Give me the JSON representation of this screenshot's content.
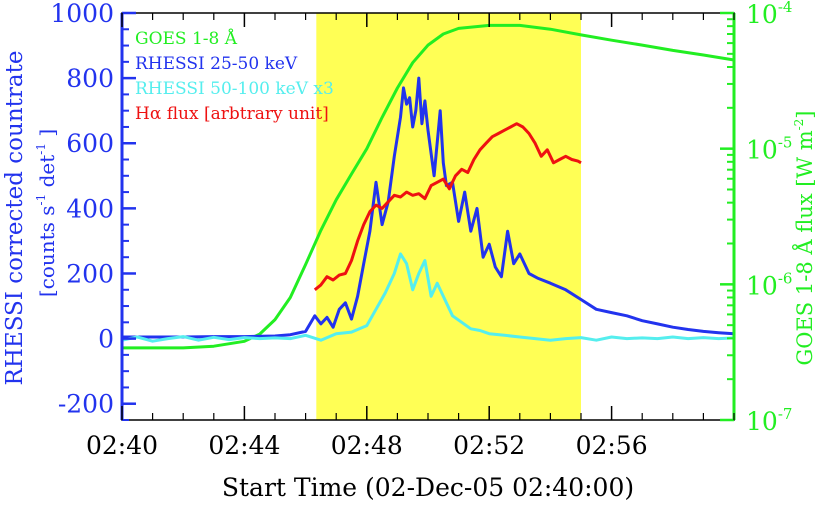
{
  "chart_data": {
    "type": "line",
    "x_axis": {
      "label": "Start Time (02-Dec-05 02:40:00)",
      "range_min": [
        0,
        20
      ],
      "ticks": [
        0,
        4,
        8,
        12,
        16
      ],
      "tick_labels": [
        "02:40",
        "02:44",
        "02:48",
        "02:52",
        "02:56"
      ],
      "minor_step_min": 1
    },
    "y_left": {
      "label_line1": "RHESSI corrected countrate",
      "label_line2_pre": "[counts s",
      "label_line2_sup1": "-1",
      "label_line2_mid": " det",
      "label_line2_sup2": "-1",
      "label_line2_post": " ]",
      "range": [
        -250,
        1000
      ],
      "ticks": [
        -200,
        0,
        200,
        400,
        600,
        800,
        1000
      ],
      "tick_labels": [
        "-200",
        "0",
        "200",
        "400",
        "600",
        "800",
        "1000"
      ],
      "color": "#2233ee"
    },
    "y_right": {
      "label_pre": "GOES 1-8 Å flux [W m",
      "label_sup": "-2",
      "label_post": "]",
      "scale": "log",
      "range": [
        1e-07,
        0.0001
      ],
      "ticks": [
        1e-07,
        1e-06,
        1e-05,
        0.0001
      ],
      "tick_bases": [
        "10",
        "10",
        "10",
        "10"
      ],
      "tick_exps": [
        "-7",
        "-6",
        "-5",
        "-4"
      ],
      "color": "#22ee22"
    },
    "highlight": {
      "x0": 6.35,
      "x1": 15.0,
      "color": "#ffff55"
    },
    "legend": {
      "position": "top-left",
      "entries": [
        {
          "label": "GOES 1-8 Å",
          "color": "#22ee22"
        },
        {
          "label": "RHESSI 25-50 keV",
          "color": "#2233ee"
        },
        {
          "label": "RHESSI 50-100 keV x3",
          "color": "#55eeee"
        },
        {
          "label": "Hα flux [arbtrary unit]",
          "color": "#ee1111"
        }
      ]
    },
    "series": [
      {
        "name": "GOES 1-8 Å",
        "axis": "right",
        "color": "#22ee22",
        "x": [
          0,
          1,
          2,
          3,
          4,
          4.5,
          5,
          5.5,
          6,
          6.5,
          7,
          7.5,
          8,
          8.5,
          9,
          9.5,
          10,
          10.5,
          11,
          12,
          13,
          14,
          15,
          16,
          17,
          18,
          19,
          20
        ],
        "y": [
          3.4e-07,
          3.4e-07,
          3.4e-07,
          3.5e-07,
          3.8e-07,
          4.3e-07,
          5.5e-07,
          8e-07,
          1.4e-06,
          2.5e-06,
          4.2e-06,
          6.5e-06,
          1e-05,
          1.7e-05,
          2.8e-05,
          4.3e-05,
          5.8e-05,
          7e-05,
          7.7e-05,
          8.1e-05,
          8.1e-05,
          7.6e-05,
          6.9e-05,
          6.3e-05,
          5.8e-05,
          5.3e-05,
          4.9e-05,
          4.5e-05
        ]
      },
      {
        "name": "RHESSI 25-50 keV",
        "axis": "left",
        "color": "#2233ee",
        "x": [
          0,
          1,
          2,
          3,
          4,
          5,
          5.5,
          6,
          6.3,
          6.5,
          6.7,
          6.9,
          7.1,
          7.3,
          7.5,
          7.7,
          7.9,
          8.1,
          8.3,
          8.5,
          8.7,
          8.9,
          9.1,
          9.2,
          9.3,
          9.4,
          9.5,
          9.6,
          9.7,
          9.8,
          9.9,
          10.0,
          10.2,
          10.4,
          10.5,
          10.6,
          10.8,
          11.0,
          11.2,
          11.4,
          11.6,
          11.8,
          12.0,
          12.2,
          12.4,
          12.6,
          12.8,
          13.0,
          13.3,
          13.6,
          14.0,
          14.5,
          15.0,
          15.5,
          16.0,
          16.5,
          17.0,
          17.5,
          18.0,
          18.5,
          19.0,
          19.5,
          20.0
        ],
        "y": [
          5,
          5,
          5,
          6,
          6,
          8,
          12,
          22,
          70,
          45,
          65,
          35,
          90,
          110,
          60,
          130,
          230,
          330,
          480,
          350,
          420,
          560,
          680,
          770,
          720,
          740,
          650,
          700,
          800,
          660,
          730,
          640,
          500,
          700,
          540,
          470,
          480,
          360,
          450,
          330,
          400,
          250,
          290,
          220,
          190,
          330,
          230,
          260,
          200,
          185,
          170,
          150,
          120,
          90,
          80,
          70,
          55,
          45,
          35,
          28,
          22,
          18,
          15
        ]
      },
      {
        "name": "RHESSI 50-100 keV x3",
        "axis": "left",
        "color": "#55eeee",
        "x": [
          0,
          0.5,
          1,
          1.5,
          2,
          2.5,
          3,
          3.5,
          4,
          4.5,
          5,
          5.5,
          6,
          6.5,
          7,
          7.5,
          8,
          8.3,
          8.6,
          8.9,
          9.1,
          9.3,
          9.5,
          9.7,
          9.9,
          10.1,
          10.3,
          10.5,
          10.8,
          11.1,
          11.4,
          11.7,
          12.0,
          12.5,
          13.0,
          14.0,
          14.5,
          15.0,
          15.5,
          16.0,
          16.5,
          17.0,
          17.5,
          18.0,
          18.5,
          19.0,
          19.5,
          20.0
        ],
        "y": [
          -5,
          5,
          -8,
          0,
          6,
          -5,
          4,
          -3,
          3,
          0,
          2,
          0,
          10,
          -5,
          15,
          20,
          40,
          90,
          140,
          200,
          260,
          230,
          150,
          200,
          240,
          130,
          170,
          130,
          70,
          50,
          30,
          25,
          15,
          10,
          5,
          -5,
          0,
          3,
          -5,
          5,
          0,
          2,
          0,
          5,
          0,
          3,
          0,
          2
        ]
      },
      {
        "name": "Hα flux",
        "axis": "left",
        "color": "#ee1111",
        "x": [
          6.3,
          6.5,
          6.7,
          6.9,
          7.1,
          7.3,
          7.5,
          7.7,
          7.9,
          8.1,
          8.3,
          8.5,
          8.7,
          8.9,
          9.1,
          9.3,
          9.5,
          9.7,
          9.9,
          10.1,
          10.3,
          10.5,
          10.7,
          10.9,
          11.1,
          11.3,
          11.5,
          11.7,
          11.9,
          12.1,
          12.3,
          12.5,
          12.7,
          12.9,
          13.1,
          13.3,
          13.5,
          13.7,
          13.9,
          14.1,
          14.3,
          14.5,
          14.7,
          14.9,
          15.0
        ],
        "y": [
          150,
          165,
          190,
          180,
          195,
          200,
          240,
          300,
          350,
          390,
          410,
          400,
          420,
          440,
          435,
          450,
          440,
          445,
          430,
          470,
          480,
          490,
          460,
          500,
          520,
          510,
          550,
          580,
          600,
          620,
          630,
          640,
          650,
          660,
          650,
          630,
          600,
          560,
          580,
          540,
          550,
          560,
          550,
          545,
          540
        ]
      }
    ]
  }
}
